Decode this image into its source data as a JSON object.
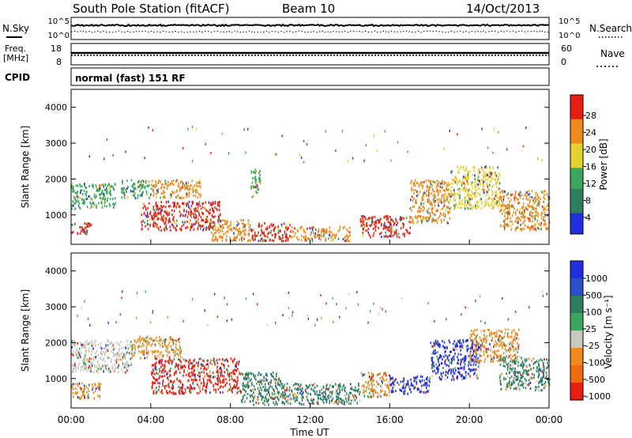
{
  "header": {
    "station": "South Pole Station (fitACF)",
    "beam": "Beam 10",
    "date": "14/Oct/2013"
  },
  "param_panels": {
    "nsky_label": "N.Sky",
    "nsearch_label": "N.Search",
    "noise_ticks_top": "10^5",
    "noise_ticks_bottom": "10^0",
    "freq_label_line1": "Freq.",
    "freq_label_line2": "[MHz]",
    "freq_ticks": [
      "18",
      "8"
    ],
    "nave_label": "Nave",
    "nave_ticks": [
      "60",
      "0"
    ],
    "cpid_label": "CPID",
    "cpid_value": "normal (fast) 151 RF"
  },
  "colors": {
    "blue": "#1f2fe0",
    "darkgreen": "#2f7f5f",
    "green": "#3aa85a",
    "yellow": "#e6d22e",
    "orange": "#f08a1c",
    "red": "#e81e10",
    "grey": "#c8c8c0"
  },
  "chart_data": [
    {
      "type": "heatmap",
      "name": "power",
      "ylabel": "Slant Range [km]",
      "ylim": [
        180,
        4500
      ],
      "yticks": [
        "1000",
        "2000",
        "3000",
        "4000"
      ],
      "xlim": [
        "00:00",
        "24:00"
      ],
      "colorbar_label": "Power [dB]",
      "colorbar_ticks": [
        "28",
        "24",
        "20",
        "16",
        "12",
        "8",
        "4"
      ],
      "regions": [
        {
          "t": [
            0.0,
            2.2
          ],
          "r": [
            1200,
            1900
          ],
          "level": "green"
        },
        {
          "t": [
            0.0,
            1.0
          ],
          "r": [
            500,
            800
          ],
          "level": "red"
        },
        {
          "t": [
            2.5,
            4.0
          ],
          "r": [
            1500,
            2000
          ],
          "level": "green"
        },
        {
          "t": [
            4.0,
            6.5
          ],
          "r": [
            1500,
            2000
          ],
          "level": "orange"
        },
        {
          "t": [
            3.5,
            7.5
          ],
          "r": [
            600,
            1400
          ],
          "level": "red"
        },
        {
          "t": [
            7.0,
            9.0
          ],
          "r": [
            300,
            900
          ],
          "level": "orange"
        },
        {
          "t": [
            9.0,
            11.0
          ],
          "r": [
            300,
            800
          ],
          "level": "red"
        },
        {
          "t": [
            9.0,
            9.5
          ],
          "r": [
            1500,
            2300
          ],
          "level": "green"
        },
        {
          "t": [
            11.0,
            14.0
          ],
          "r": [
            300,
            700
          ],
          "level": "orange"
        },
        {
          "t": [
            14.5,
            17.0
          ],
          "r": [
            400,
            1000
          ],
          "level": "red"
        },
        {
          "t": [
            17.0,
            19.0
          ],
          "r": [
            800,
            2000
          ],
          "level": "orange"
        },
        {
          "t": [
            19.0,
            21.5
          ],
          "r": [
            1200,
            2400
          ],
          "level": "yellow"
        },
        {
          "t": [
            21.5,
            24.0
          ],
          "r": [
            600,
            1700
          ],
          "level": "orange"
        }
      ]
    },
    {
      "type": "heatmap",
      "name": "velocity",
      "ylabel": "Slant Range [km]",
      "ylim": [
        180,
        4500
      ],
      "yticks": [
        "1000",
        "2000",
        "3000",
        "4000"
      ],
      "xlim": [
        "00:00",
        "24:00"
      ],
      "xlabel": "Time UT",
      "xticks": [
        "00:00",
        "04:00",
        "08:00",
        "12:00",
        "16:00",
        "20:00",
        "00:00"
      ],
      "colorbar_label": "Velocity [m s⁻¹]",
      "colorbar_ticks": [
        "1000",
        "500",
        "100",
        "25",
        "-25",
        "-100",
        "-500",
        "-1000"
      ],
      "regions": [
        {
          "t": [
            0.0,
            3.0
          ],
          "r": [
            1200,
            2100
          ],
          "level": "grey"
        },
        {
          "t": [
            0.0,
            1.5
          ],
          "r": [
            450,
            900
          ],
          "level": "orange"
        },
        {
          "t": [
            3.0,
            5.5
          ],
          "r": [
            1600,
            2200
          ],
          "level": "orange"
        },
        {
          "t": [
            4.0,
            8.5
          ],
          "r": [
            600,
            1600
          ],
          "level": "red"
        },
        {
          "t": [
            8.5,
            10.5
          ],
          "r": [
            300,
            1200
          ],
          "level": "darkgreen"
        },
        {
          "t": [
            10.5,
            14.5
          ],
          "r": [
            300,
            900
          ],
          "level": "darkgreen"
        },
        {
          "t": [
            14.5,
            16.0
          ],
          "r": [
            500,
            1200
          ],
          "level": "orange"
        },
        {
          "t": [
            16.0,
            18.0
          ],
          "r": [
            600,
            1100
          ],
          "level": "blue"
        },
        {
          "t": [
            18.0,
            20.5
          ],
          "r": [
            1000,
            2100
          ],
          "level": "blue"
        },
        {
          "t": [
            20.0,
            22.5
          ],
          "r": [
            1500,
            2400
          ],
          "level": "orange"
        },
        {
          "t": [
            21.5,
            24.0
          ],
          "r": [
            700,
            1600
          ],
          "level": "darkgreen"
        }
      ]
    }
  ]
}
